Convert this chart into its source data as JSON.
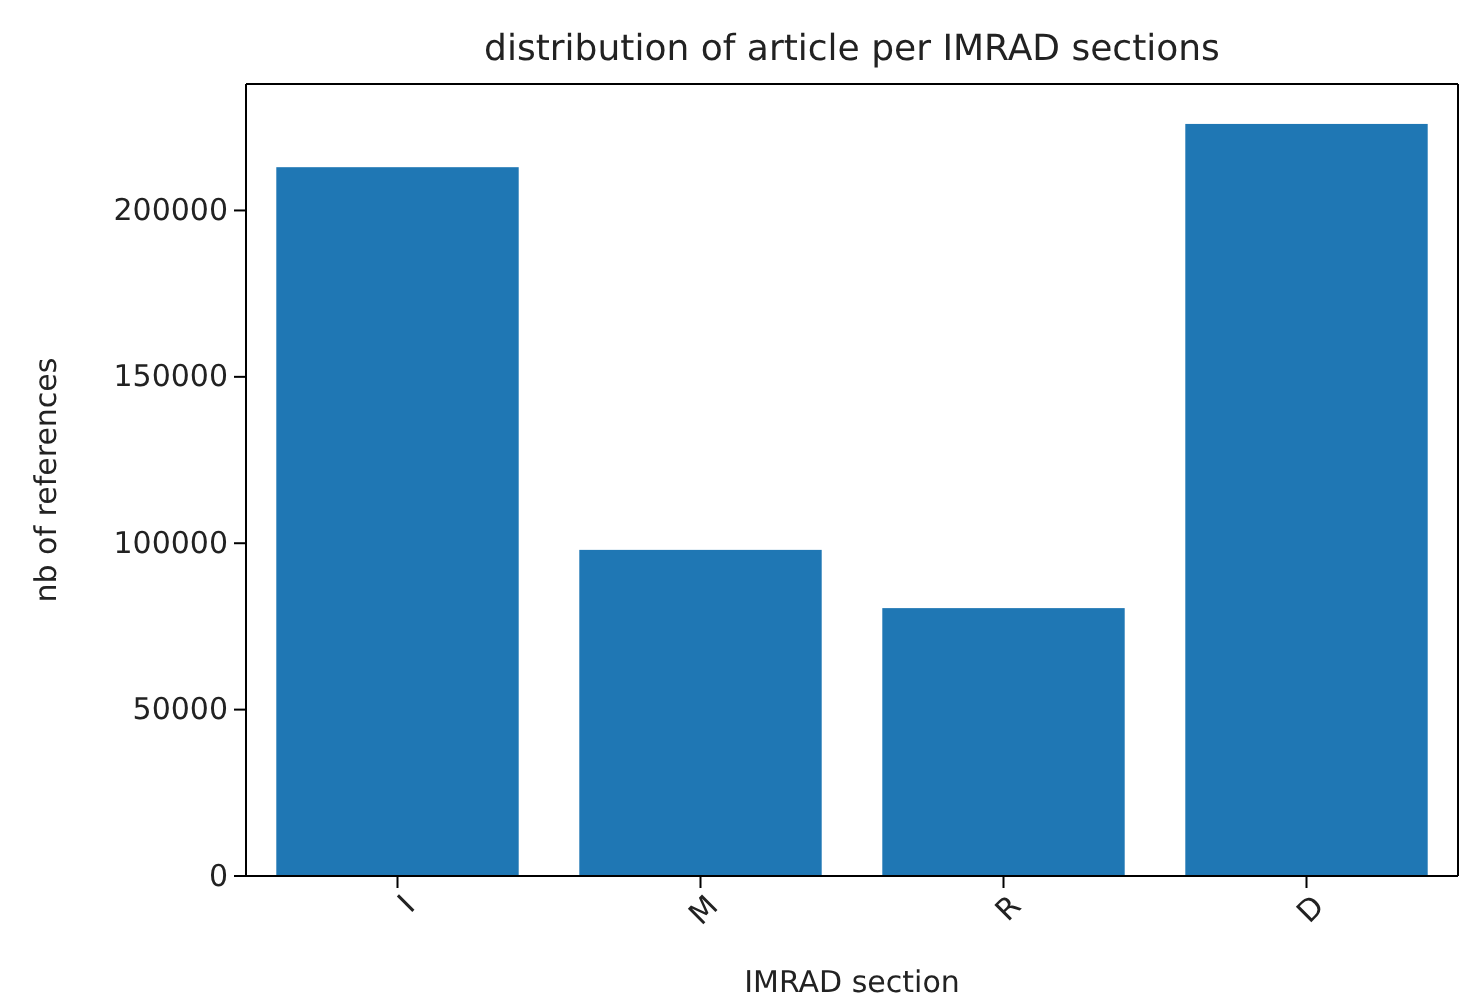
{
  "chart_data": {
    "type": "bar",
    "title": "distribution of article per IMRAD sections",
    "xlabel": "IMRAD section",
    "ylabel": "nb of references",
    "categories": [
      "I",
      "M",
      "R",
      "D"
    ],
    "values": [
      213000,
      98000,
      80500,
      226000
    ],
    "color": "#1f77b4",
    "ylim": [
      0,
      238000
    ],
    "yticks": [
      0,
      50000,
      100000,
      150000,
      200000
    ],
    "grid": false
  }
}
